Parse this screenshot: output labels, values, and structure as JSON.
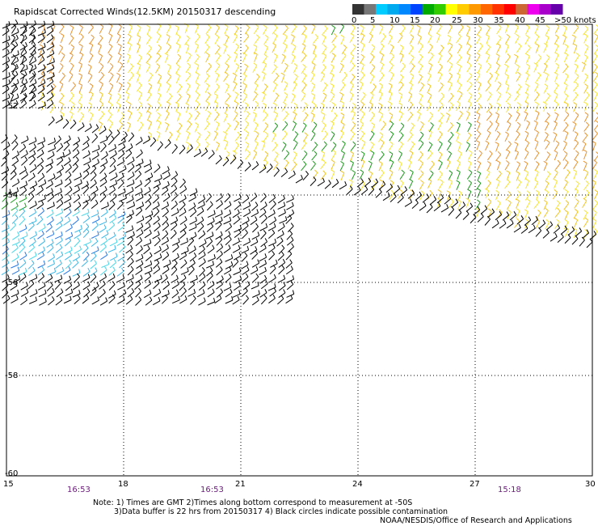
{
  "title": "Rapidscat Corrected Winds(12.5KM) 20150317 descending",
  "colors": {
    "background": "#ffffff",
    "grid": "#000000",
    "barb_black": "#000000",
    "scale_bins": [
      "#333333",
      "#777777",
      "#00ccff",
      "#00aaee",
      "#0088ff",
      "#0044ff",
      "#00aa00",
      "#33cc00",
      "#ffff00",
      "#ffcc00",
      "#ff9900",
      "#ff6600",
      "#ff3300",
      "#ff0000",
      "#cc6633",
      "#ee00ee",
      "#aa00cc",
      "#6600aa"
    ]
  },
  "scale": {
    "labels": [
      "0",
      "5",
      "10",
      "15",
      "20",
      "25",
      "30",
      "35",
      "40",
      "45",
      ">50 knots"
    ]
  },
  "x_axis": {
    "ticks": [
      "15",
      "18",
      "21",
      "24",
      "27",
      "30"
    ],
    "times": [
      "16:53",
      "16:53",
      "15:18"
    ]
  },
  "y_axis": {
    "ticks": [
      "-52",
      "-54",
      "-56",
      "-58",
      "-60"
    ]
  },
  "notes": [
    "Note: 1) Times are GMT 2)Times along bottom correspond to measurement at -50S",
    "3)Data buffer is 22 hrs from 20150317 4) Black circles indicate possible contamination",
    "NOAA/NESDIS/Office of Research and Applications"
  ]
}
